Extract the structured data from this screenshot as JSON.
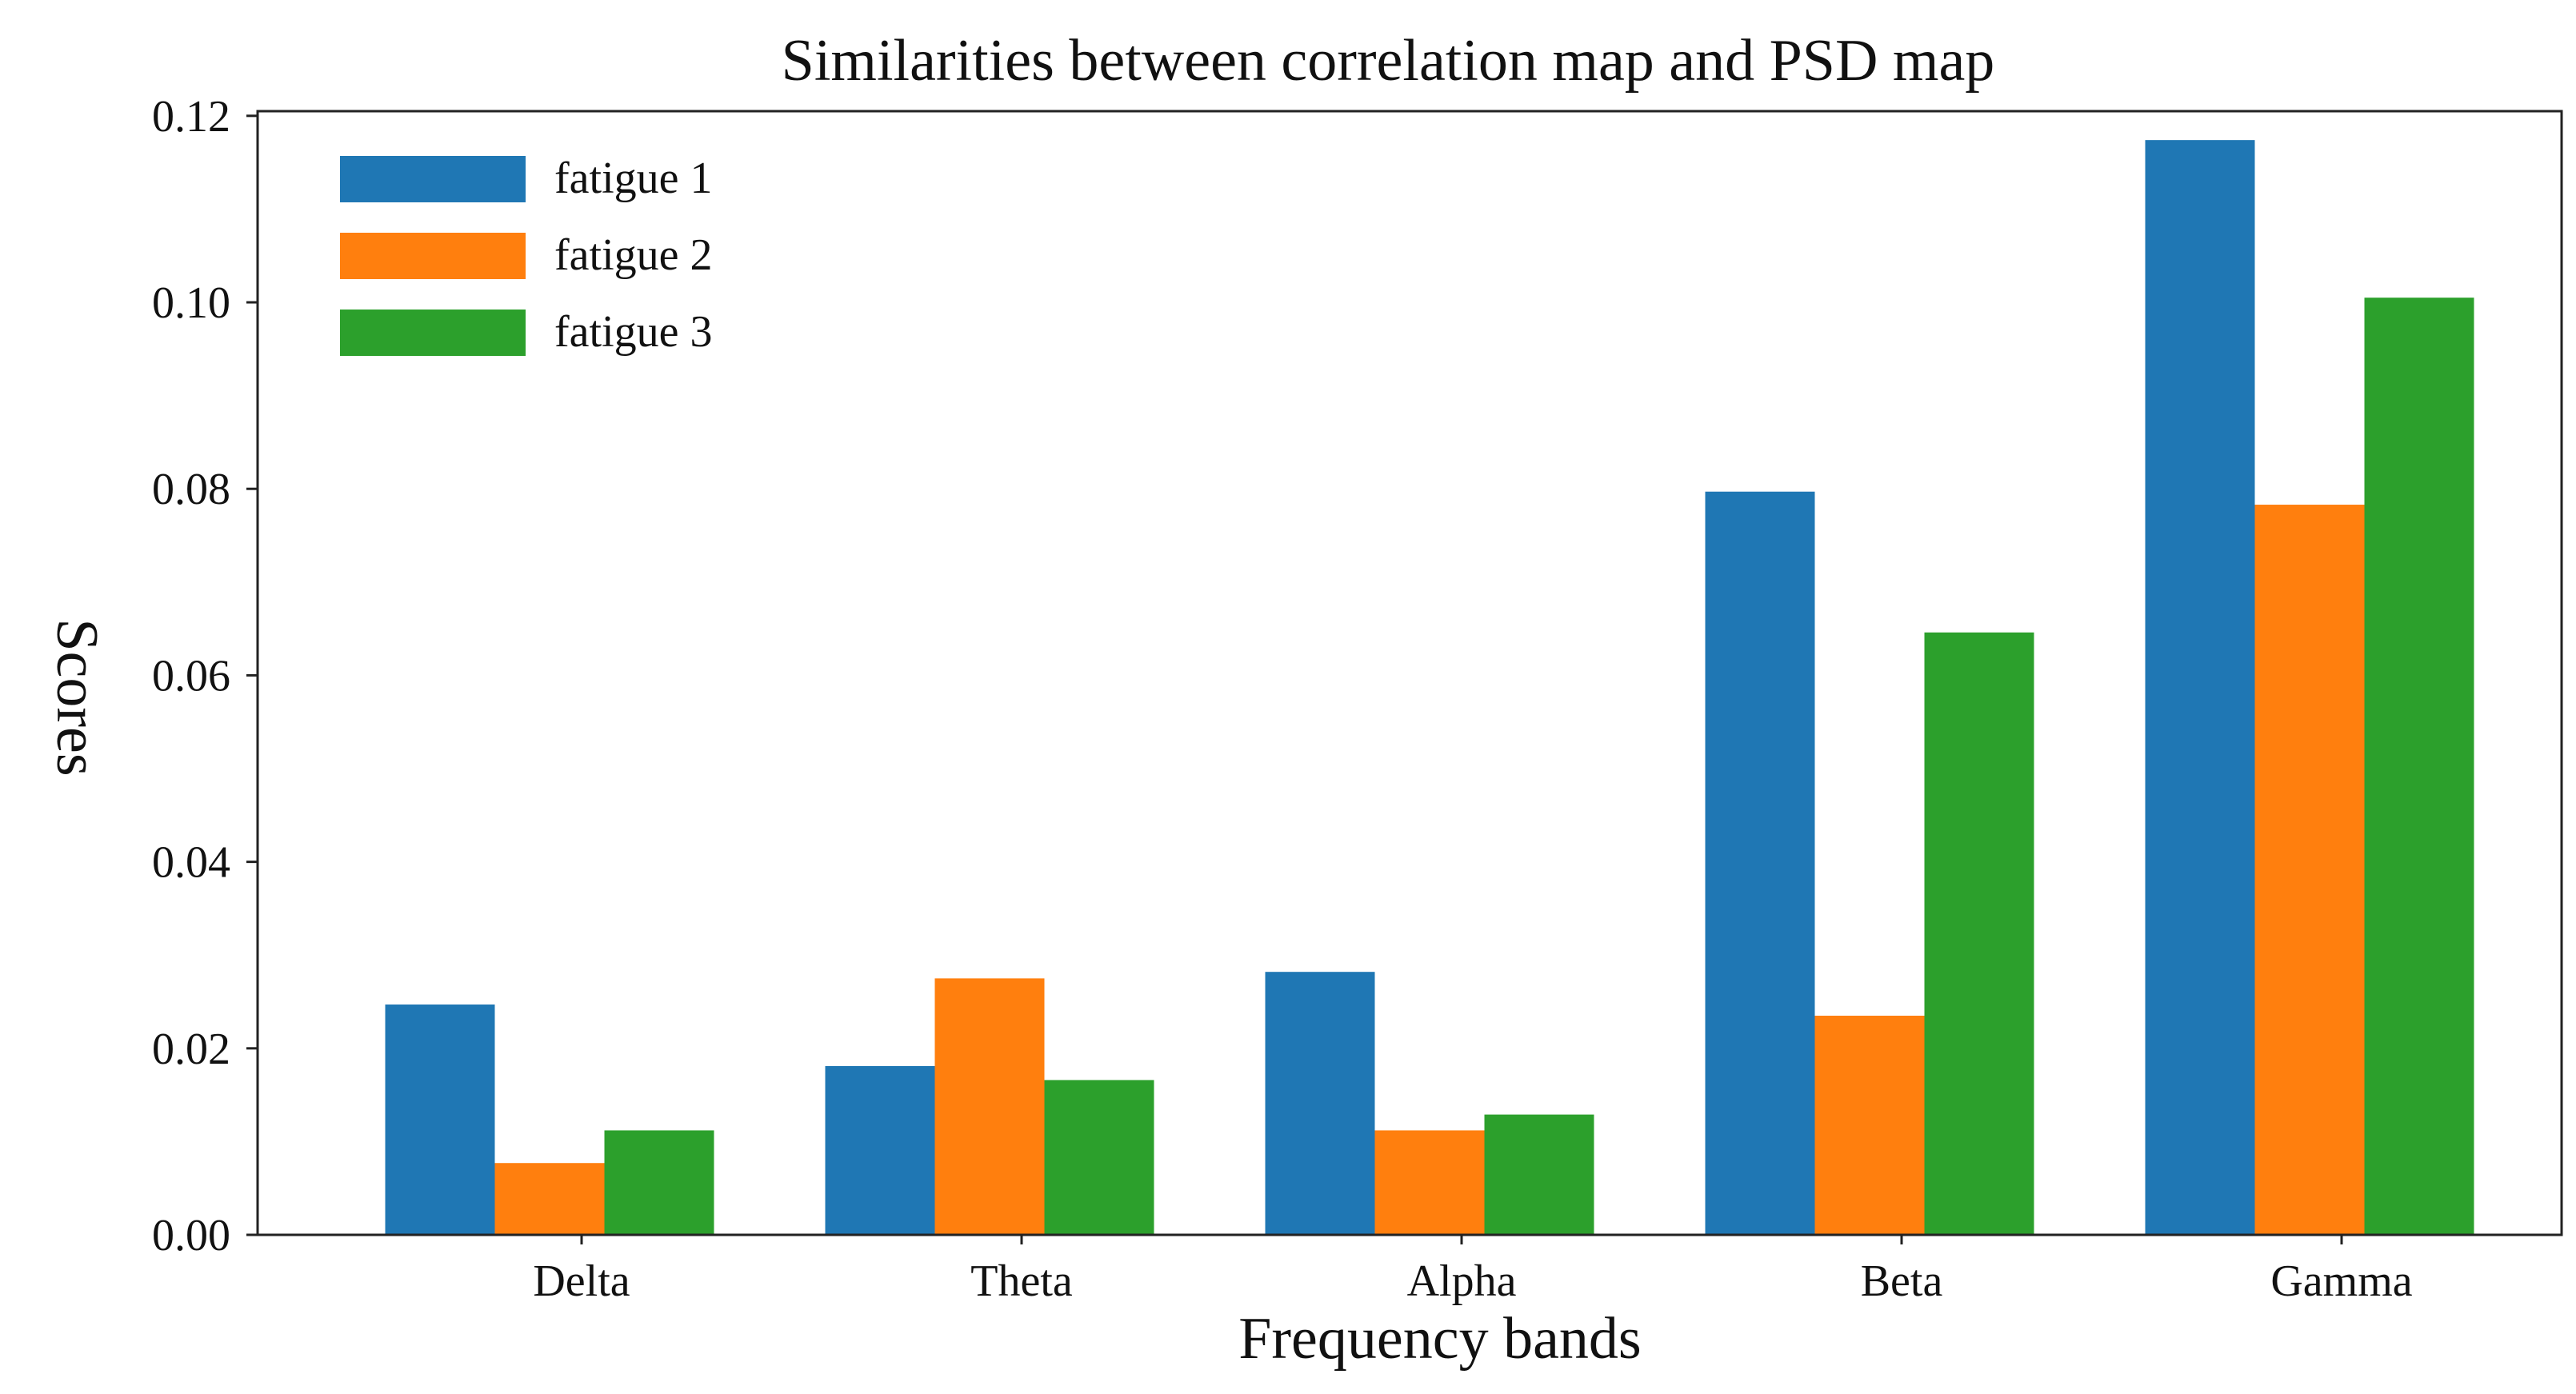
{
  "chart_data": {
    "type": "bar",
    "title": "Similarities between correlation map and PSD map",
    "xlabel": "Frequency bands",
    "ylabel": "Scores",
    "categories": [
      "Delta",
      "Theta",
      "Alpha",
      "Beta",
      "Gamma"
    ],
    "series": [
      {
        "name": "fatigue 1",
        "color": "#1f77b4",
        "values": [
          0.0247,
          0.0181,
          0.0282,
          0.0797,
          0.1174
        ]
      },
      {
        "name": "fatigue 2",
        "color": "#ff7f0e",
        "values": [
          0.0077,
          0.0275,
          0.0112,
          0.0235,
          0.0783
        ]
      },
      {
        "name": "fatigue 3",
        "color": "#2ca02c",
        "values": [
          0.0112,
          0.0166,
          0.0129,
          0.0646,
          0.1005
        ]
      }
    ],
    "ylim": [
      0,
      0.1205
    ],
    "yticks": [
      "0.00",
      "0.02",
      "0.04",
      "0.06",
      "0.08",
      "0.10",
      "0.12"
    ],
    "grid": false,
    "legend_position": "top-left"
  }
}
